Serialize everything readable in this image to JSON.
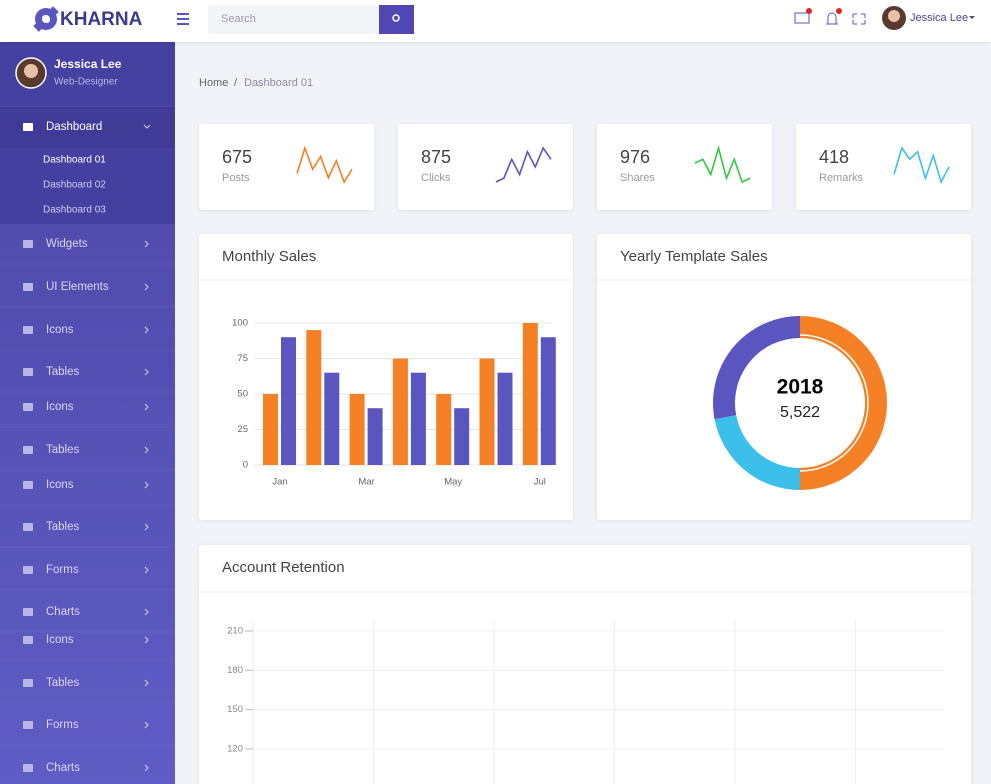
{
  "header": {
    "logo": "KHARNA",
    "search_placeholder": "Search",
    "user": "Jessica Lee"
  },
  "sidebar": {
    "profile": {
      "name": "Jessica Lee",
      "role": "Web-Designer"
    },
    "menu": [
      {
        "label": "Dashboard",
        "submenu": [
          "Dashboard 01",
          "Dashboard 02",
          "Dashboard 03"
        ]
      },
      {
        "label": "Widgets"
      },
      {
        "label": "UI Elements"
      },
      {
        "label": "Icons"
      },
      {
        "label": "Tables"
      },
      {
        "label": "Icons"
      },
      {
        "label": "Tables"
      },
      {
        "label": "Icons"
      },
      {
        "label": "Tables"
      },
      {
        "label": "Forms"
      },
      {
        "label": "Charts"
      },
      {
        "label": "Icons"
      },
      {
        "label": "Tables"
      },
      {
        "label": "Forms"
      },
      {
        "label": "Charts"
      }
    ]
  },
  "breadcrumb": {
    "items": [
      "Home",
      "Dashboard 01"
    ],
    "separator": "/"
  },
  "stats": [
    {
      "value": 675,
      "label": "Posts",
      "color": "#f58025",
      "spark": [
        2,
        8,
        3,
        6,
        1,
        5,
        0,
        3
      ]
    },
    {
      "value": 875,
      "label": "Clicks",
      "color": "#5b55c0",
      "spark": [
        0,
        1,
        6,
        2,
        8,
        4,
        9,
        6
      ]
    },
    {
      "value": 976,
      "label": "Shares",
      "color": "#2fcc3f",
      "spark": [
        5,
        6,
        2,
        9,
        1,
        6,
        0,
        1
      ]
    },
    {
      "value": 418,
      "label": "Remarks",
      "color": "#3cbfea",
      "spark": [
        2,
        9,
        6,
        8,
        1,
        7,
        0,
        4
      ]
    }
  ],
  "chart_data": [
    {
      "type": "bar",
      "title": "Monthly Sales",
      "categories": [
        "Jan",
        null,
        "Mar",
        null,
        "May",
        null,
        "Jul"
      ],
      "series": [
        {
          "color": "#f58025",
          "values": [
            50,
            95,
            50,
            75,
            50,
            75,
            100
          ]
        },
        {
          "color": "#5b55c0",
          "values": [
            90,
            65,
            40,
            65,
            40,
            65,
            90
          ]
        }
      ],
      "ylim": [
        0,
        100
      ],
      "yticks": [
        0,
        25,
        50,
        75,
        100
      ],
      "grid": true
    },
    {
      "type": "pie",
      "title": "Yearly Template Sales",
      "values": [
        50,
        22,
        28
      ],
      "colors": [
        "#f58025",
        "#3cbfea",
        "#5b55c0"
      ],
      "center_title": "2018",
      "center_value": "5,522"
    },
    {
      "type": "line",
      "title": "Account Retention",
      "ylim": [
        90,
        215
      ],
      "yticks": [
        120,
        150,
        180,
        210
      ],
      "grid": true
    }
  ]
}
